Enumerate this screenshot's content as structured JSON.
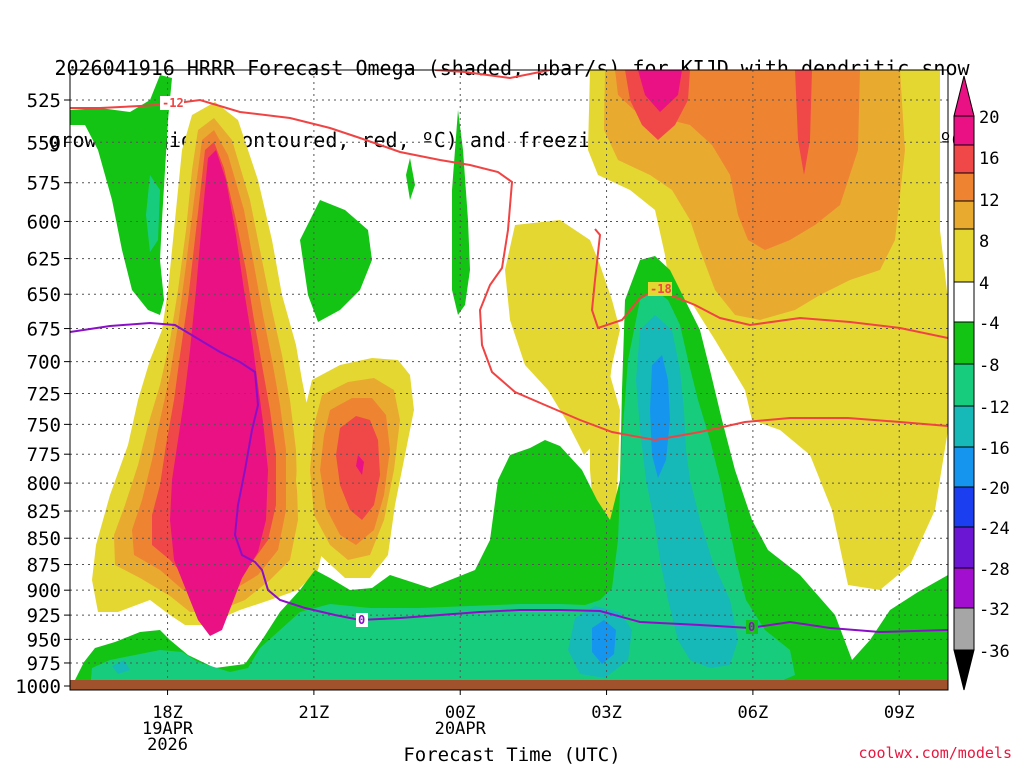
{
  "title": {
    "line1": "2026041916 HRRR Forecast Omega (shaded, μbar/s) for KIJD with dendritic snow",
    "line2": "growth region (contoured, red, ºC) and freezing level (contoured, purple, ºC)"
  },
  "credit": "coolwx.com/models",
  "chart_data": {
    "type": "heatmap",
    "xlabel": "Forecast Time (UTC)",
    "x_ticks": [
      {
        "hour": 18,
        "lines": [
          "18Z",
          "19APR",
          "2026"
        ]
      },
      {
        "hour": 21,
        "lines": [
          "21Z"
        ]
      },
      {
        "hour": 24,
        "lines": [
          "00Z",
          "20APR"
        ]
      },
      {
        "hour": 27,
        "lines": [
          "03Z"
        ]
      },
      {
        "hour": 30,
        "lines": [
          "06Z"
        ]
      },
      {
        "hour": 33,
        "lines": [
          "09Z"
        ]
      }
    ],
    "x_range_hours": [
      16,
      34
    ],
    "y_ticks": [
      525,
      550,
      575,
      600,
      625,
      650,
      675,
      700,
      725,
      750,
      775,
      800,
      825,
      850,
      875,
      900,
      925,
      950,
      975,
      1000
    ],
    "y_axis": "pressure (hPa), log scale, inverted",
    "grid": true,
    "colorbar": {
      "labels": [
        20,
        16,
        12,
        8,
        4,
        -4,
        -8,
        -12,
        -16,
        -20,
        -24,
        -28,
        -32,
        -36
      ],
      "colors": {
        "c20": "#ea1185",
        "c16": "#f04848",
        "c12": "#ee8432",
        "c8": "#e8ab30",
        "c4": "#e5d732",
        "white": "#ffffff",
        "m4": "#14c414",
        "m8": "#18cc7e",
        "m12": "#17b8b8",
        "m16": "#1695ee",
        "m20": "#1a3ef0",
        "m24": "#6b16d2",
        "m28": "#a20fcf",
        "m32": "#a6a6a6",
        "m36": "#000000"
      }
    },
    "contours": {
      "dgz_color": "#f04444",
      "freezing_color": "#8a10c8",
      "labels": [
        "-12",
        "-18",
        "0",
        "0"
      ]
    },
    "ground_color": "#a0522d"
  }
}
